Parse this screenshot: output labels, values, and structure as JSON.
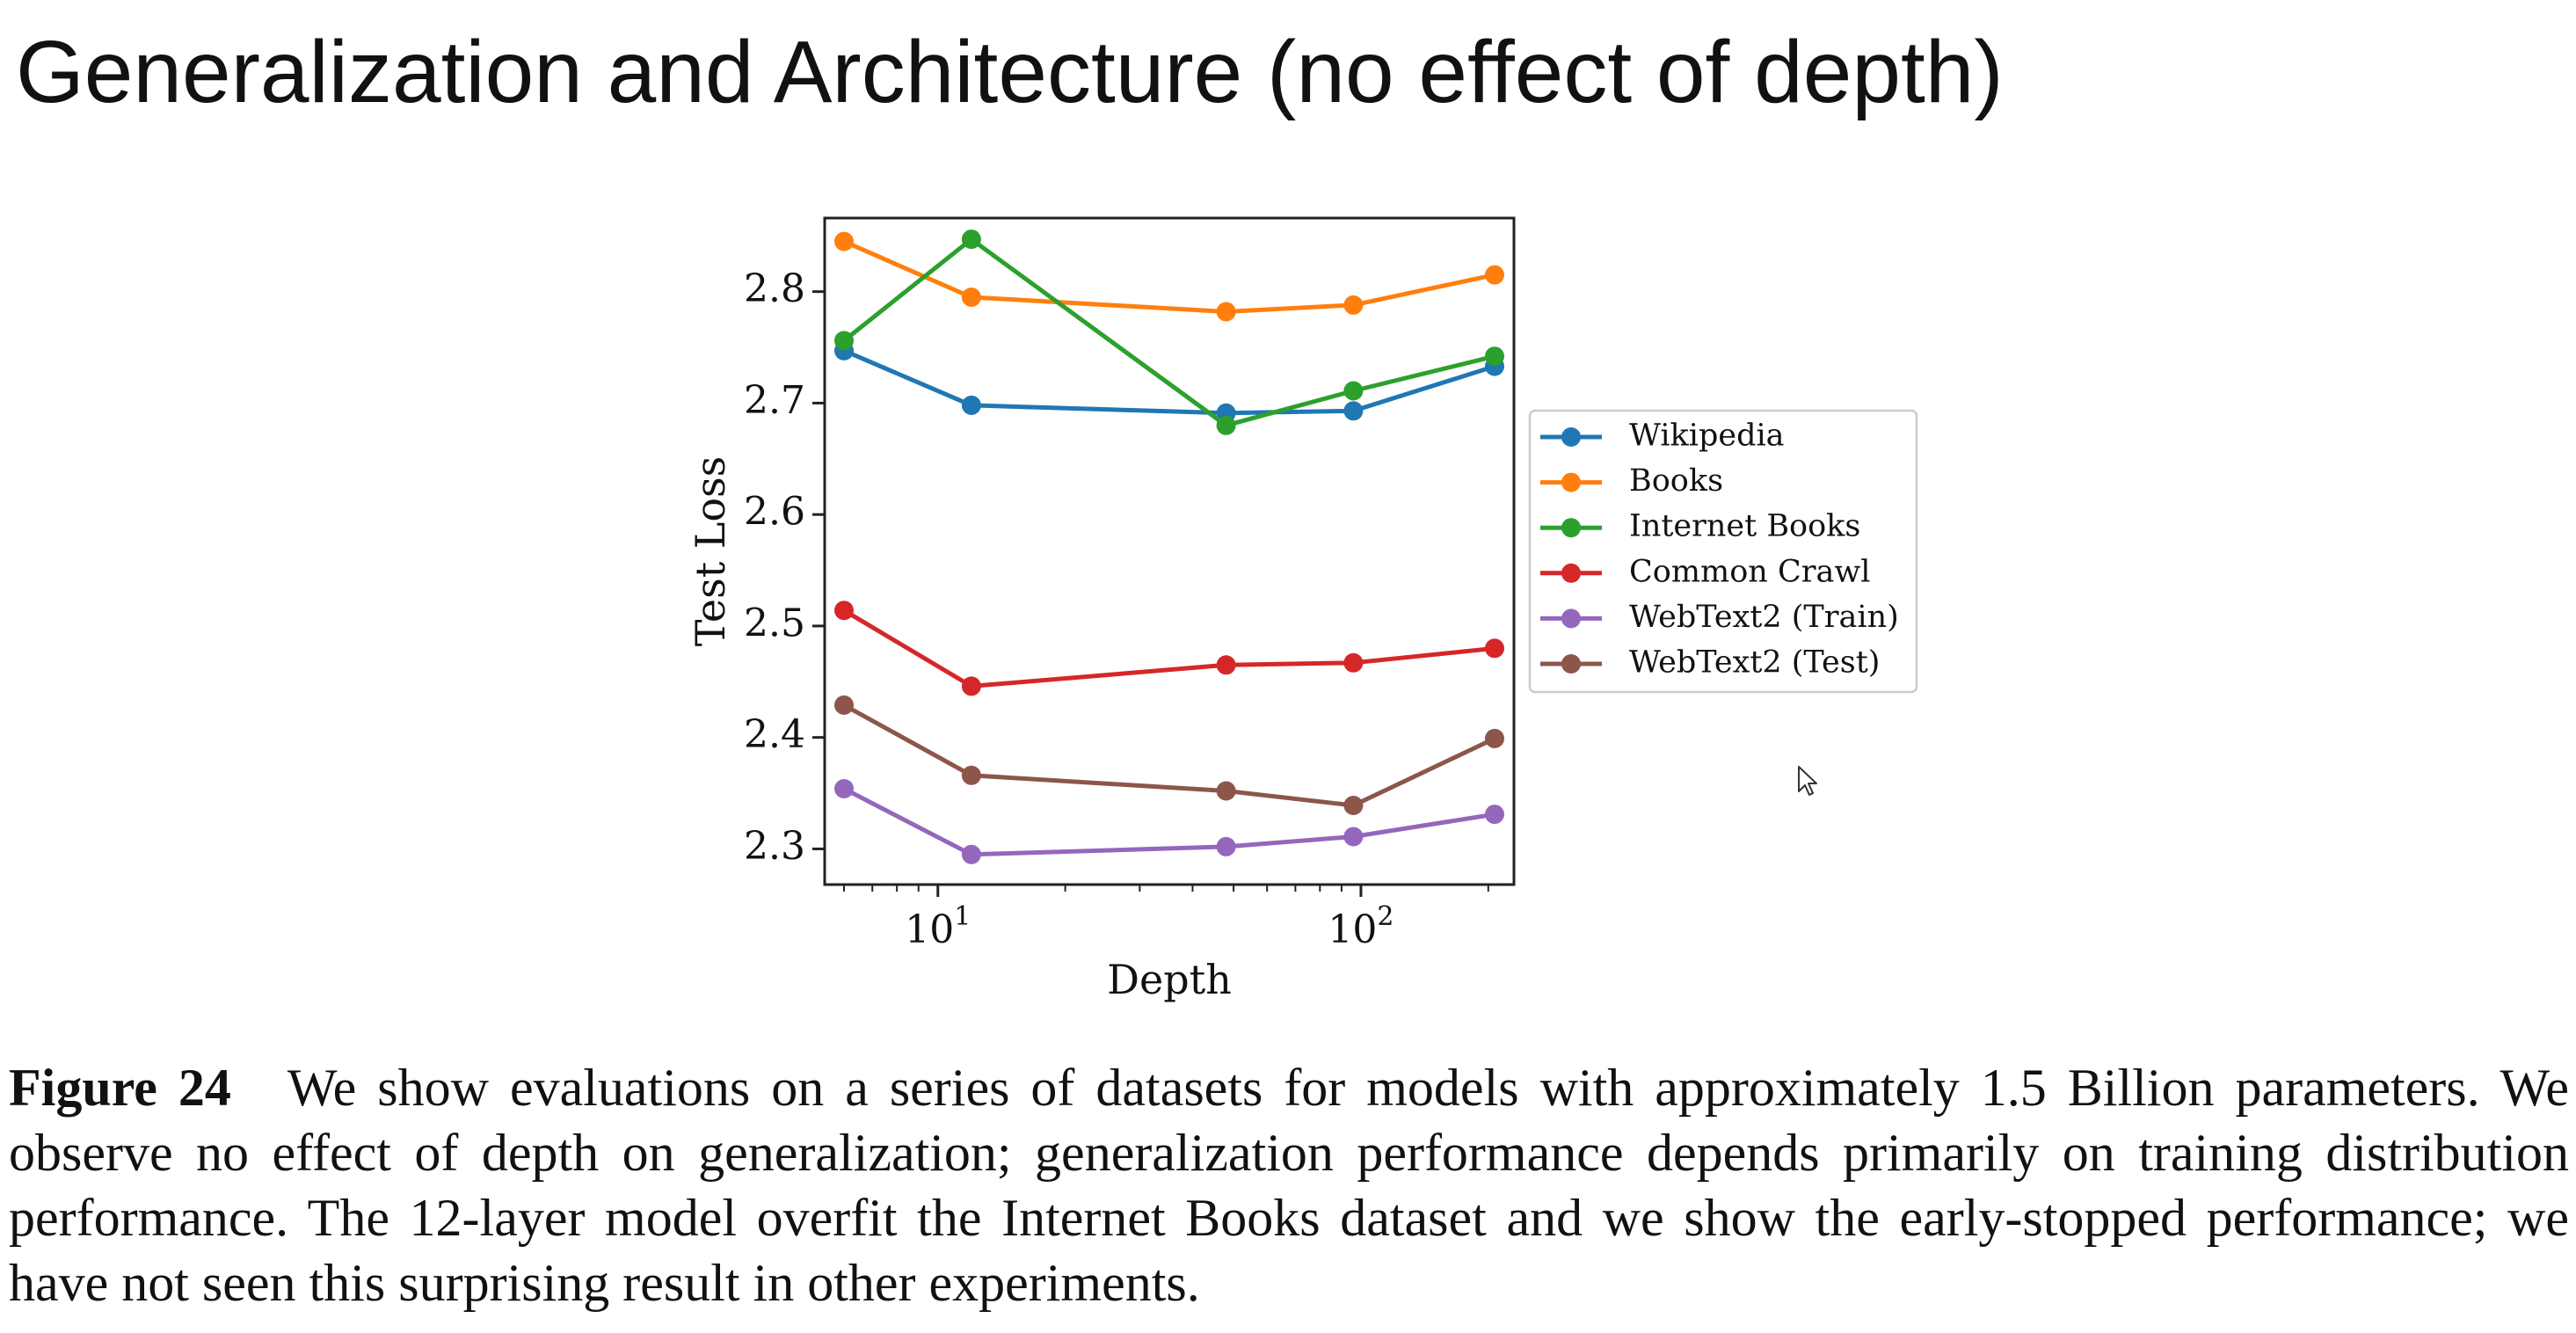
{
  "slide": {
    "title": "Generalization and Architecture (no effect of depth)"
  },
  "caption": {
    "label": "Figure 24",
    "text": "We show evaluations on a series of datasets for models with approximately 1.5 Billion parameters. We observe no effect of depth on generalization; generalization performance depends primarily on training distribution performance. The 12-layer model overfit the Internet Books dataset and we show the early-stopped performance; we have not seen this surprising result in other experiments."
  },
  "chart_data": {
    "type": "line",
    "title": "",
    "xlabel": "Depth",
    "ylabel": "Test Loss",
    "x_scale": "log",
    "x": [
      6,
      12,
      48,
      96,
      207
    ],
    "xlim": [
      5.4,
      230
    ],
    "ylim": [
      2.268,
      2.866
    ],
    "x_ticks": [
      {
        "value": 10,
        "base": "10",
        "exp": "1"
      },
      {
        "value": 100,
        "base": "10",
        "exp": "2"
      }
    ],
    "x_minor_ticks": [
      6,
      7,
      8,
      9,
      20,
      30,
      40,
      50,
      60,
      70,
      80,
      90,
      200
    ],
    "y_ticks": [
      2.3,
      2.4,
      2.5,
      2.6,
      2.7,
      2.8
    ],
    "y_tick_labels": [
      "2.3",
      "2.4",
      "2.5",
      "2.6",
      "2.7",
      "2.8"
    ],
    "grid": false,
    "legend_position": "right, outside plot",
    "series": [
      {
        "name": "Wikipedia",
        "color": "#1f77b4",
        "values": [
          2.747,
          2.698,
          2.691,
          2.693,
          2.733
        ]
      },
      {
        "name": "Books",
        "color": "#ff7f0e",
        "values": [
          2.845,
          2.795,
          2.782,
          2.788,
          2.815
        ]
      },
      {
        "name": "Internet Books",
        "color": "#2ca02c",
        "values": [
          2.756,
          2.847,
          2.68,
          2.711,
          2.742
        ]
      },
      {
        "name": "Common Crawl",
        "color": "#d62728",
        "values": [
          2.514,
          2.446,
          2.465,
          2.467,
          2.48
        ]
      },
      {
        "name": "WebText2 (Train)",
        "color": "#9467bd",
        "values": [
          2.354,
          2.295,
          2.302,
          2.311,
          2.331
        ]
      },
      {
        "name": "WebText2 (Test)",
        "color": "#8c564b",
        "values": [
          2.429,
          2.366,
          2.352,
          2.339,
          2.399
        ]
      }
    ]
  }
}
